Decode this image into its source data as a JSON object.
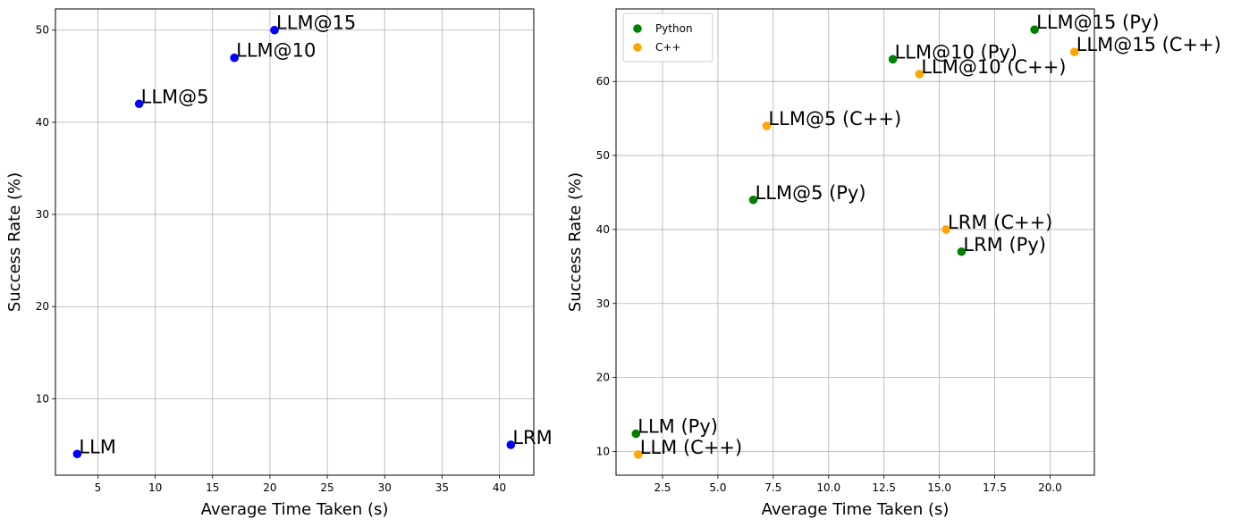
{
  "chart_data": [
    {
      "type": "scatter",
      "title": "",
      "xlabel": "Average Time Taken (s)",
      "ylabel": "Success Rate (%)",
      "xlim": [
        1.3,
        43.0
      ],
      "ylim": [
        1.7,
        52.3
      ],
      "xticks": [
        5,
        10,
        15,
        20,
        25,
        30,
        35,
        40
      ],
      "yticks": [
        10,
        20,
        30,
        40,
        50
      ],
      "grid": true,
      "legend": null,
      "series": [
        {
          "name": "",
          "color": "#0000ff",
          "points": [
            {
              "x": 3.2,
              "y": 4,
              "label": "LLM"
            },
            {
              "x": 8.6,
              "y": 42,
              "label": "LLM@5"
            },
            {
              "x": 16.9,
              "y": 47,
              "label": "LLM@10"
            },
            {
              "x": 20.4,
              "y": 50,
              "label": "LLM@15"
            },
            {
              "x": 41.0,
              "y": 5,
              "label": "LRM"
            }
          ]
        }
      ]
    },
    {
      "type": "scatter",
      "title": "",
      "xlabel": "Average Time Taken (s)",
      "ylabel": "Success Rate (%)",
      "xlim": [
        0.4,
        22.0
      ],
      "ylim": [
        6.8,
        69.8
      ],
      "xticks": [
        2.5,
        5.0,
        7.5,
        10.0,
        12.5,
        15.0,
        17.5,
        20.0
      ],
      "yticks": [
        10,
        20,
        30,
        40,
        50,
        60
      ],
      "grid": true,
      "legend": "upper-left",
      "series": [
        {
          "name": "Python",
          "color": "#008000",
          "points": [
            {
              "x": 1.3,
              "y": 12.4,
              "label": "LLM (Py)"
            },
            {
              "x": 6.6,
              "y": 44,
              "label": "LLM@5 (Py)"
            },
            {
              "x": 12.9,
              "y": 63,
              "label": "LLM@10 (Py)"
            },
            {
              "x": 19.3,
              "y": 67,
              "label": "LLM@15 (Py)"
            },
            {
              "x": 16.0,
              "y": 37,
              "label": "LRM (Py)"
            }
          ]
        },
        {
          "name": "C++",
          "color": "#ffa500",
          "points": [
            {
              "x": 1.4,
              "y": 9.6,
              "label": "LLM (C++)"
            },
            {
              "x": 7.2,
              "y": 54,
              "label": "LLM@5 (C++)"
            },
            {
              "x": 14.1,
              "y": 61,
              "label": "LLM@10 (C++)"
            },
            {
              "x": 21.1,
              "y": 64,
              "label": "LLM@15 (C++)"
            },
            {
              "x": 15.3,
              "y": 40,
              "label": "LRM (C++)"
            }
          ]
        }
      ]
    }
  ]
}
